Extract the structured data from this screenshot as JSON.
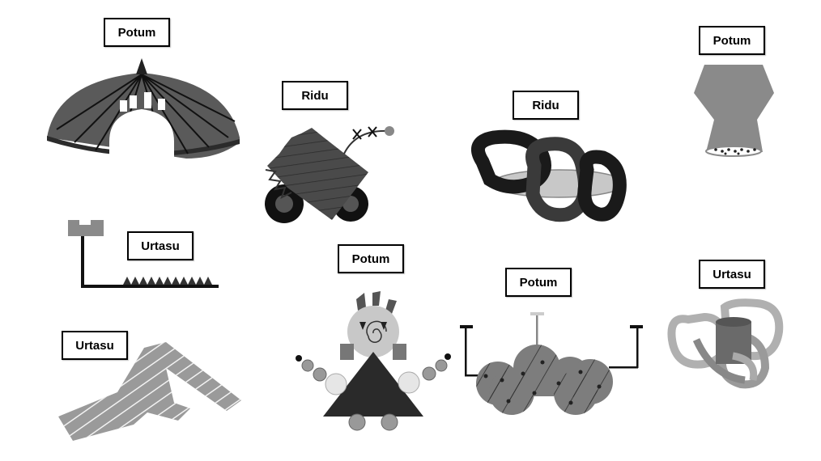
{
  "labels": [
    {
      "id": "umbrella",
      "text": "Potum"
    },
    {
      "id": "vase",
      "text": "Potum"
    },
    {
      "id": "cart",
      "text": "Ridu"
    },
    {
      "id": "rings",
      "text": "Ridu"
    },
    {
      "id": "lamp",
      "text": "Urtasu"
    },
    {
      "id": "ribbon",
      "text": "Urtasu"
    },
    {
      "id": "figure",
      "text": "Potum"
    },
    {
      "id": "cloud",
      "text": "Potum"
    },
    {
      "id": "knot",
      "text": "Urtasu"
    }
  ],
  "colors": {
    "dark": "#3a3a3a",
    "mid": "#7a7a7a",
    "light": "#b5b5b5",
    "pale": "#dcdcdc",
    "black": "#111111"
  }
}
